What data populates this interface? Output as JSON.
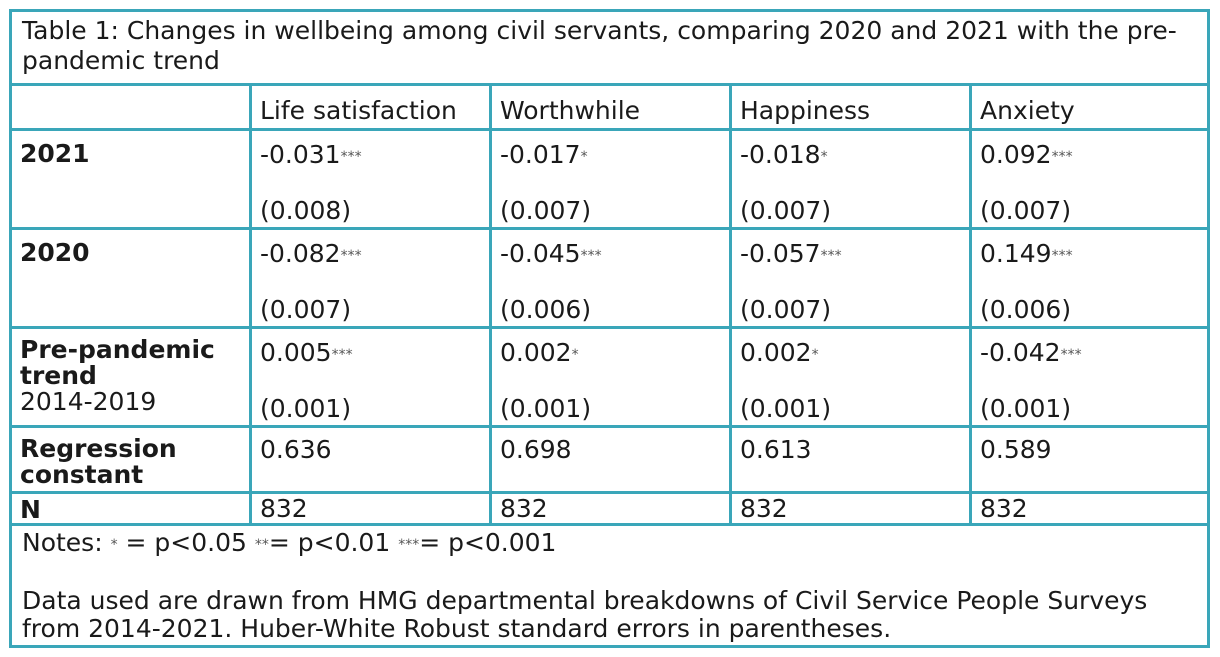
{
  "caption": "Table 1: Changes in wellbeing among civil servants, comparing 2020 and 2021 with the pre-pandemic trend",
  "columns": [
    "Life satisfaction",
    "Worthwhile",
    "Happiness",
    "Anxiety"
  ],
  "rows": [
    {
      "label": "2021",
      "sublabel": "",
      "cells": [
        {
          "coef": "-0.031",
          "stars": "***",
          "se": "(0.008)"
        },
        {
          "coef": "-0.017",
          "stars": "*",
          "se": "(0.007)"
        },
        {
          "coef": "-0.018",
          "stars": "*",
          "se": "(0.007)"
        },
        {
          "coef": "0.092",
          "stars": "***",
          "se": "(0.007)"
        }
      ]
    },
    {
      "label": "2020",
      "sublabel": "",
      "cells": [
        {
          "coef": "-0.082",
          "stars": "***",
          "se": "(0.007)"
        },
        {
          "coef": "-0.045",
          "stars": "***",
          "se": "(0.006)"
        },
        {
          "coef": "-0.057",
          "stars": "***",
          "se": "(0.007)"
        },
        {
          "coef": "0.149",
          "stars": "***",
          "se": "(0.006)"
        }
      ]
    },
    {
      "label": "Pre-pandemic trend",
      "sublabel": "2014-2019",
      "cells": [
        {
          "coef": "0.005",
          "stars": "***",
          "se": "(0.001)"
        },
        {
          "coef": "0.002",
          "stars": "*",
          "se": "(0.001)"
        },
        {
          "coef": "0.002",
          "stars": "*",
          "se": "(0.001)"
        },
        {
          "coef": "-0.042",
          "stars": "***",
          "se": "(0.001)"
        }
      ]
    }
  ],
  "constant_row": {
    "label": "Regression constant",
    "values": [
      "0.636",
      "0.698",
      "0.613",
      "0.589"
    ]
  },
  "n_row": {
    "label": "N",
    "values": [
      "832",
      "832",
      "832",
      "832"
    ]
  },
  "notes": {
    "line1_prefix": "Notes: ",
    "s1": "*",
    "t1": " = p<0.05 ",
    "s2": "**",
    "t2": "= p<0.01 ",
    "s3": "***",
    "t3": "= p<0.001",
    "line2": "Data used are drawn from HMG departmental breakdowns of Civil Service People Surveys from 2014-2021. Huber-White Robust standard errors in parentheses."
  },
  "colors": {
    "border": "#3aa6b9",
    "text": "#1a1a1a"
  }
}
